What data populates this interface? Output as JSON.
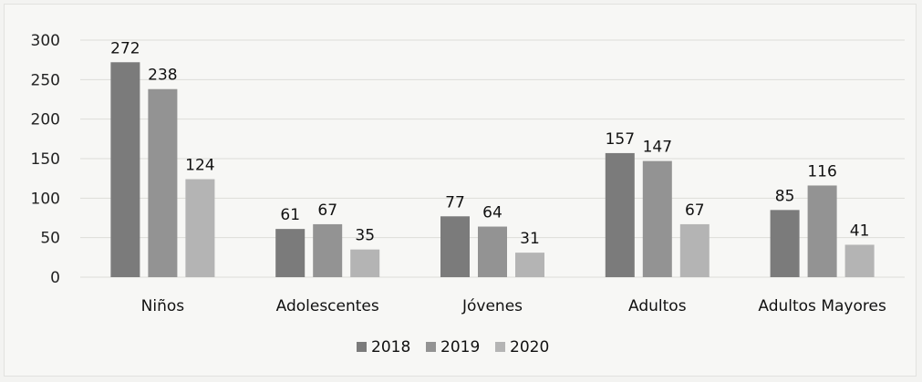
{
  "chart_data": {
    "type": "bar",
    "title": "",
    "xlabel": "",
    "ylabel": "",
    "categories": [
      "Niños",
      "Adolescentes",
      "Jóvenes",
      "Adultos",
      "Adultos Mayores"
    ],
    "series": [
      {
        "name": "2018",
        "values": [
          272,
          61,
          77,
          157,
          85
        ],
        "color": "#7b7b7b"
      },
      {
        "name": "2019",
        "values": [
          238,
          67,
          64,
          147,
          116
        ],
        "color": "#939393"
      },
      {
        "name": "2020",
        "values": [
          124,
          35,
          31,
          67,
          41
        ],
        "color": "#b4b4b4"
      }
    ],
    "ylim": [
      0,
      300
    ],
    "yticks": [
      0,
      50,
      100,
      150,
      200,
      250,
      300
    ],
    "grid": true,
    "legend_position": "bottom"
  }
}
